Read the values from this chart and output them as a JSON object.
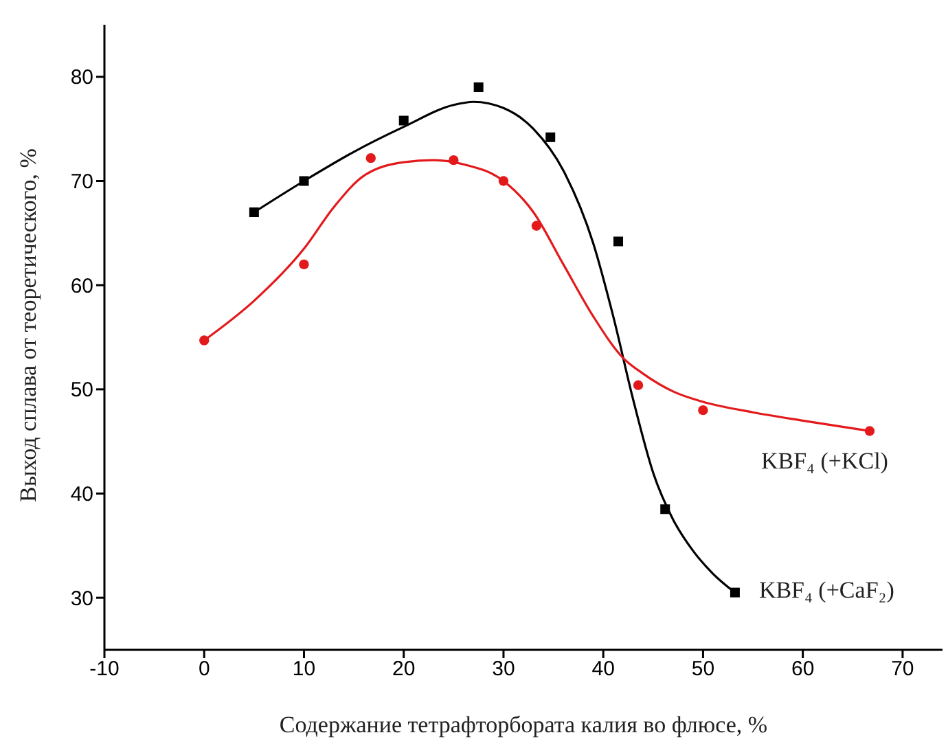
{
  "chart_data": {
    "type": "scatter",
    "xlabel": "Содержание тетрафторбората калия во флюсе, %",
    "ylabel": "Выход сплава от теоретического, %",
    "xlim": [
      -10,
      74
    ],
    "xticks": [
      -10,
      0,
      10,
      20,
      30,
      40,
      50,
      60,
      70
    ],
    "ylim": [
      25,
      85
    ],
    "yticks": [
      30,
      40,
      50,
      60,
      70,
      80
    ],
    "grid": false,
    "legend": false,
    "series": [
      {
        "type": "line",
        "color": "#000000",
        "marker": "none",
        "x": [
          5,
          10,
          15,
          20,
          25,
          27,
          30,
          33,
          36,
          39,
          41,
          43,
          45,
          47,
          49,
          51,
          53.2
        ],
        "values": [
          67,
          70,
          72.8,
          75.2,
          77.3,
          77.6,
          77,
          75,
          71,
          64,
          57,
          49,
          42,
          37.5,
          34.5,
          32.3,
          30.5
        ]
      },
      {
        "type": "line",
        "color": "#e31a1c",
        "marker": "none",
        "x": [
          0,
          5,
          10,
          13,
          16,
          20,
          23,
          26,
          30,
          33,
          36,
          39,
          42,
          44,
          47,
          50,
          55,
          60,
          66.7
        ],
        "values": [
          54.7,
          58.5,
          63.5,
          67.5,
          70.5,
          71.8,
          72,
          71.6,
          70,
          67,
          62,
          57,
          53,
          51.5,
          49.8,
          48.8,
          47.8,
          47,
          46
        ]
      },
      {
        "name": "KBF₄ (+CaF₂)",
        "color": "#000000",
        "marker": "square",
        "x": [
          5,
          10,
          20,
          27.5,
          34.7,
          41.5,
          46.2,
          53.2
        ],
        "values": [
          67,
          70,
          75.8,
          79,
          74.2,
          64.2,
          38.5,
          30.5
        ]
      },
      {
        "name": "KBF₄ (+KCl)",
        "color": "#e31a1c",
        "marker": "circle",
        "x": [
          0,
          10,
          16.7,
          25,
          30,
          33.3,
          43.5,
          50,
          66.7
        ],
        "values": [
          54.7,
          62,
          72.2,
          72,
          70,
          65.7,
          50.4,
          48,
          46
        ]
      }
    ]
  }
}
